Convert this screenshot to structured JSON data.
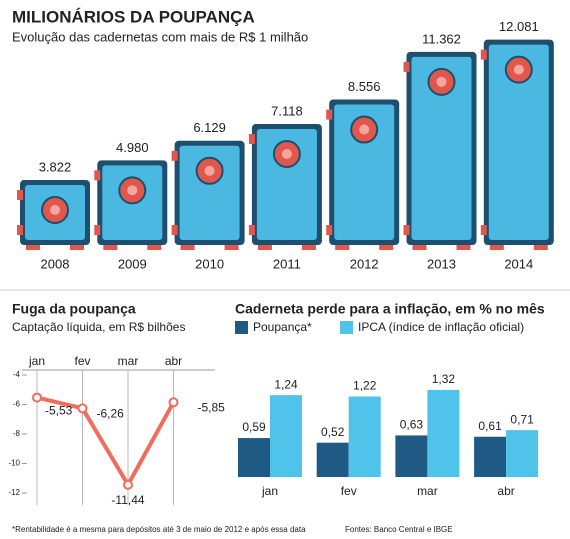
{
  "chart_data": [
    {
      "type": "safe-bar",
      "title": "MILIONÁRIOS DA POUPANÇA",
      "subtitle": "Evolução das cadernetas com mais de R$ 1 milhão",
      "categories": [
        "2008",
        "2009",
        "2010",
        "2011",
        "2012",
        "2013",
        "2014"
      ],
      "values": [
        3822,
        4980,
        6129,
        7118,
        8556,
        11362,
        12081
      ],
      "value_labels": [
        "3.822",
        "4.980",
        "6.129",
        "7.118",
        "8.556",
        "11.362",
        "12.081"
      ],
      "color": "#4ab8e0"
    },
    {
      "type": "line",
      "title": "Fuga da poupança",
      "subtitle": "Captação líquida, em R$ bilhões",
      "categories": [
        "jan",
        "fev",
        "mar",
        "abr"
      ],
      "values": [
        -5.53,
        -6.26,
        -11.44,
        -5.85
      ],
      "value_labels": [
        "-5,53",
        "-6,26",
        "-11,44",
        "-5,85"
      ],
      "ylim": [
        -12,
        -4
      ],
      "yticks": [
        -4,
        -6,
        -8,
        -10,
        -12
      ],
      "color": "#f26b5b"
    },
    {
      "type": "grouped-bar",
      "title": "Caderneta perde para a inflação, em % no mês",
      "categories": [
        "jan",
        "fev",
        "mar",
        "abr"
      ],
      "series": [
        {
          "name": "Poupança*",
          "color": "#1f5a85",
          "values": [
            0.59,
            0.52,
            0.63,
            0.61
          ],
          "value_labels": [
            "0,59",
            "0,52",
            "0,63",
            "0,61"
          ]
        },
        {
          "name": "IPCA (índice de inflação oficial)",
          "color": "#4fc3ea",
          "values": [
            1.24,
            1.22,
            1.32,
            0.71
          ],
          "value_labels": [
            "1,24",
            "1,22",
            "1,32",
            "0,71"
          ]
        }
      ]
    }
  ],
  "footnote": "*Rentabilidade é a mesma para depósitos até 3 de maio de 2012 e após essa data",
  "source": "Fontes: Banco Central e IBGE"
}
